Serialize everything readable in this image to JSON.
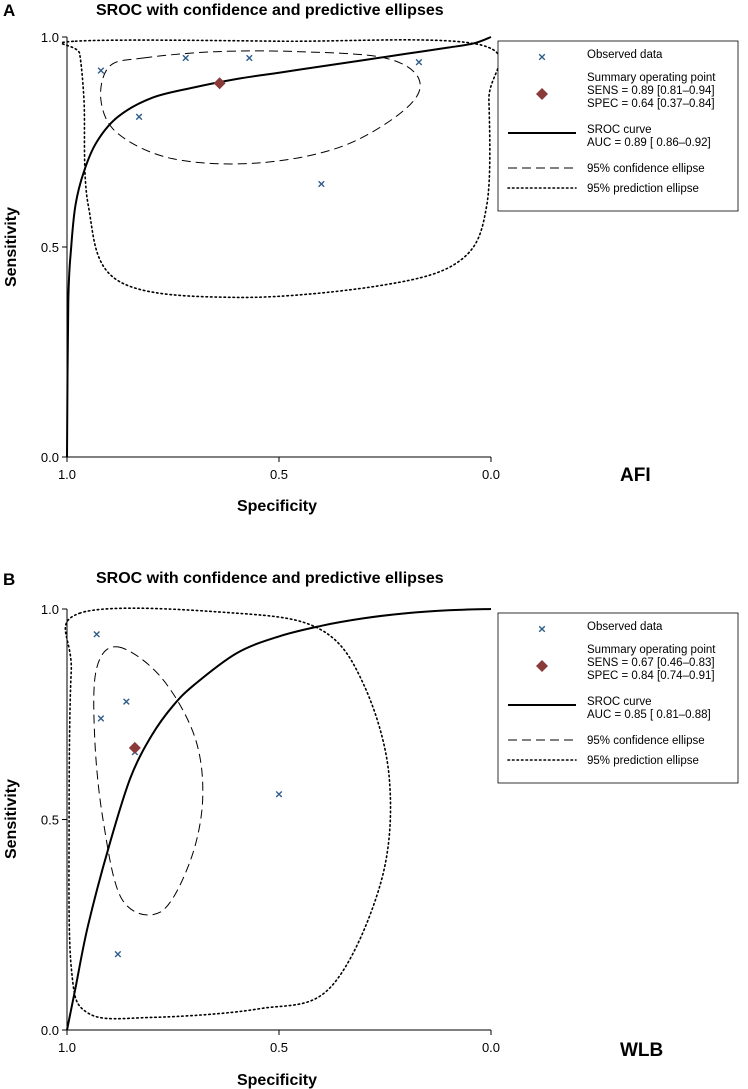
{
  "chart_data": [
    {
      "type": "scatter",
      "panel": "A",
      "title": "SROC with confidence and predictive ellipses",
      "xlabel": "Specificity",
      "ylabel": "Sensitivity",
      "tag": "AFI",
      "x_reversed": true,
      "xlim": [
        1.0,
        0.0
      ],
      "ylim": [
        0.0,
        1.0
      ],
      "xticks": [
        "1.0",
        "0.5",
        "0.0"
      ],
      "yticks": [
        "0.0",
        "0.5",
        "1.0"
      ],
      "legend_position": "right",
      "observed": [
        {
          "spec": 0.92,
          "sens": 0.92
        },
        {
          "spec": 0.83,
          "sens": 0.81
        },
        {
          "spec": 0.72,
          "sens": 0.95
        },
        {
          "spec": 0.57,
          "sens": 0.95
        },
        {
          "spec": 0.4,
          "sens": 0.65
        },
        {
          "spec": 0.17,
          "sens": 0.94
        }
      ],
      "summary": {
        "spec": 0.64,
        "sens": 0.89
      },
      "sroc": [
        {
          "spec": 1.0,
          "sens": 0.0
        },
        {
          "spec": 0.997,
          "sens": 0.37
        },
        {
          "spec": 0.99,
          "sens": 0.5
        },
        {
          "spec": 0.98,
          "sens": 0.6
        },
        {
          "spec": 0.96,
          "sens": 0.68
        },
        {
          "spec": 0.93,
          "sens": 0.75
        },
        {
          "spec": 0.88,
          "sens": 0.81
        },
        {
          "spec": 0.8,
          "sens": 0.855
        },
        {
          "spec": 0.7,
          "sens": 0.88
        },
        {
          "spec": 0.6,
          "sens": 0.9
        },
        {
          "spec": 0.5,
          "sens": 0.915
        },
        {
          "spec": 0.4,
          "sens": 0.93
        },
        {
          "spec": 0.3,
          "sens": 0.945
        },
        {
          "spec": 0.2,
          "sens": 0.96
        },
        {
          "spec": 0.1,
          "sens": 0.975
        },
        {
          "spec": 0.04,
          "sens": 0.985
        },
        {
          "spec": 0.0,
          "sens": 1.0
        }
      ],
      "confidence_ellipse": [
        {
          "spec": 0.82,
          "sens": 0.95
        },
        {
          "spec": 0.65,
          "sens": 0.965
        },
        {
          "spec": 0.45,
          "sens": 0.965
        },
        {
          "spec": 0.25,
          "sens": 0.95
        },
        {
          "spec": 0.17,
          "sens": 0.9
        },
        {
          "spec": 0.2,
          "sens": 0.83
        },
        {
          "spec": 0.35,
          "sens": 0.74
        },
        {
          "spec": 0.55,
          "sens": 0.7
        },
        {
          "spec": 0.75,
          "sens": 0.71
        },
        {
          "spec": 0.88,
          "sens": 0.77
        },
        {
          "spec": 0.92,
          "sens": 0.85
        },
        {
          "spec": 0.9,
          "sens": 0.93
        }
      ],
      "prediction_ellipse": [
        {
          "spec": 0.98,
          "sens": 0.99
        },
        {
          "spec": 0.5,
          "sens": 0.99
        },
        {
          "spec": 0.02,
          "sens": 0.98
        },
        {
          "spec": 0.005,
          "sens": 0.85
        },
        {
          "spec": 0.01,
          "sens": 0.6
        },
        {
          "spec": 0.07,
          "sens": 0.47
        },
        {
          "spec": 0.25,
          "sens": 0.41
        },
        {
          "spec": 0.6,
          "sens": 0.38
        },
        {
          "spec": 0.88,
          "sens": 0.42
        },
        {
          "spec": 0.95,
          "sens": 0.6
        },
        {
          "spec": 0.96,
          "sens": 0.85
        },
        {
          "spec": 0.97,
          "sens": 0.96
        }
      ],
      "legend": [
        {
          "kind": "observed",
          "lines": [
            "Observed data"
          ]
        },
        {
          "kind": "summary",
          "lines": [
            "Summary operating point",
            "SENS = 0.89 [0.81–0.94]",
            "SPEC = 0.64 [0.37–0.84]"
          ]
        },
        {
          "kind": "sroc",
          "lines": [
            "SROC curve",
            "AUC = 0.89 [ 0.86–0.92]"
          ]
        },
        {
          "kind": "confidence",
          "lines": [
            "95% confidence ellipse"
          ]
        },
        {
          "kind": "prediction",
          "lines": [
            "95% prediction ellipse"
          ]
        }
      ]
    },
    {
      "type": "scatter",
      "panel": "B",
      "title": "SROC with confidence and predictive ellipses",
      "xlabel": "Specificity",
      "ylabel": "Sensitivity",
      "tag": "WLB",
      "x_reversed": true,
      "xlim": [
        1.0,
        0.0
      ],
      "ylim": [
        0.0,
        1.0
      ],
      "xticks": [
        "1.0",
        "0.5",
        "0.0"
      ],
      "yticks": [
        "0.0",
        "0.5",
        "1.0"
      ],
      "legend_position": "right",
      "observed": [
        {
          "spec": 0.93,
          "sens": 0.94
        },
        {
          "spec": 0.92,
          "sens": 0.74
        },
        {
          "spec": 0.86,
          "sens": 0.78
        },
        {
          "spec": 0.84,
          "sens": 0.66
        },
        {
          "spec": 0.88,
          "sens": 0.18
        },
        {
          "spec": 0.5,
          "sens": 0.56
        }
      ],
      "summary": {
        "spec": 0.84,
        "sens": 0.67
      },
      "sroc": [
        {
          "spec": 1.0,
          "sens": 0.0
        },
        {
          "spec": 0.98,
          "sens": 0.1
        },
        {
          "spec": 0.95,
          "sens": 0.25
        },
        {
          "spec": 0.9,
          "sens": 0.44
        },
        {
          "spec": 0.85,
          "sens": 0.6
        },
        {
          "spec": 0.8,
          "sens": 0.7
        },
        {
          "spec": 0.75,
          "sens": 0.77
        },
        {
          "spec": 0.7,
          "sens": 0.82
        },
        {
          "spec": 0.6,
          "sens": 0.895
        },
        {
          "spec": 0.5,
          "sens": 0.935
        },
        {
          "spec": 0.4,
          "sens": 0.96
        },
        {
          "spec": 0.3,
          "sens": 0.978
        },
        {
          "spec": 0.2,
          "sens": 0.99
        },
        {
          "spec": 0.1,
          "sens": 0.997
        },
        {
          "spec": 0.0,
          "sens": 1.0
        }
      ],
      "confidence_ellipse": [
        {
          "spec": 0.88,
          "sens": 0.91
        },
        {
          "spec": 0.78,
          "sens": 0.84
        },
        {
          "spec": 0.7,
          "sens": 0.7
        },
        {
          "spec": 0.68,
          "sens": 0.55
        },
        {
          "spec": 0.71,
          "sens": 0.4
        },
        {
          "spec": 0.78,
          "sens": 0.28
        },
        {
          "spec": 0.87,
          "sens": 0.31
        },
        {
          "spec": 0.915,
          "sens": 0.5
        },
        {
          "spec": 0.935,
          "sens": 0.7
        },
        {
          "spec": 0.93,
          "sens": 0.86
        }
      ],
      "prediction_ellipse": [
        {
          "spec": 0.97,
          "sens": 0.99
        },
        {
          "spec": 0.6,
          "sens": 0.99
        },
        {
          "spec": 0.4,
          "sens": 0.95
        },
        {
          "spec": 0.3,
          "sens": 0.82
        },
        {
          "spec": 0.24,
          "sens": 0.6
        },
        {
          "spec": 0.26,
          "sens": 0.35
        },
        {
          "spec": 0.38,
          "sens": 0.1
        },
        {
          "spec": 0.55,
          "sens": 0.05
        },
        {
          "spec": 0.8,
          "sens": 0.03
        },
        {
          "spec": 0.95,
          "sens": 0.04
        },
        {
          "spec": 0.99,
          "sens": 0.15
        },
        {
          "spec": 0.995,
          "sens": 0.5
        },
        {
          "spec": 0.99,
          "sens": 0.85
        }
      ],
      "legend": [
        {
          "kind": "observed",
          "lines": [
            "Observed data"
          ]
        },
        {
          "kind": "summary",
          "lines": [
            "Summary operating point",
            "SENS = 0.67 [0.46–0.83]",
            "SPEC = 0.84 [0.74–0.91]"
          ]
        },
        {
          "kind": "sroc",
          "lines": [
            "SROC curve",
            "AUC = 0.85 [ 0.81–0.88]"
          ]
        },
        {
          "kind": "confidence",
          "lines": [
            "95% confidence ellipse"
          ]
        },
        {
          "kind": "prediction",
          "lines": [
            "95% prediction ellipse"
          ]
        }
      ]
    }
  ],
  "colors": {
    "observed_marker": "#2f5d8a",
    "summary_marker": "#8b3a3a",
    "curve": "#000000"
  }
}
